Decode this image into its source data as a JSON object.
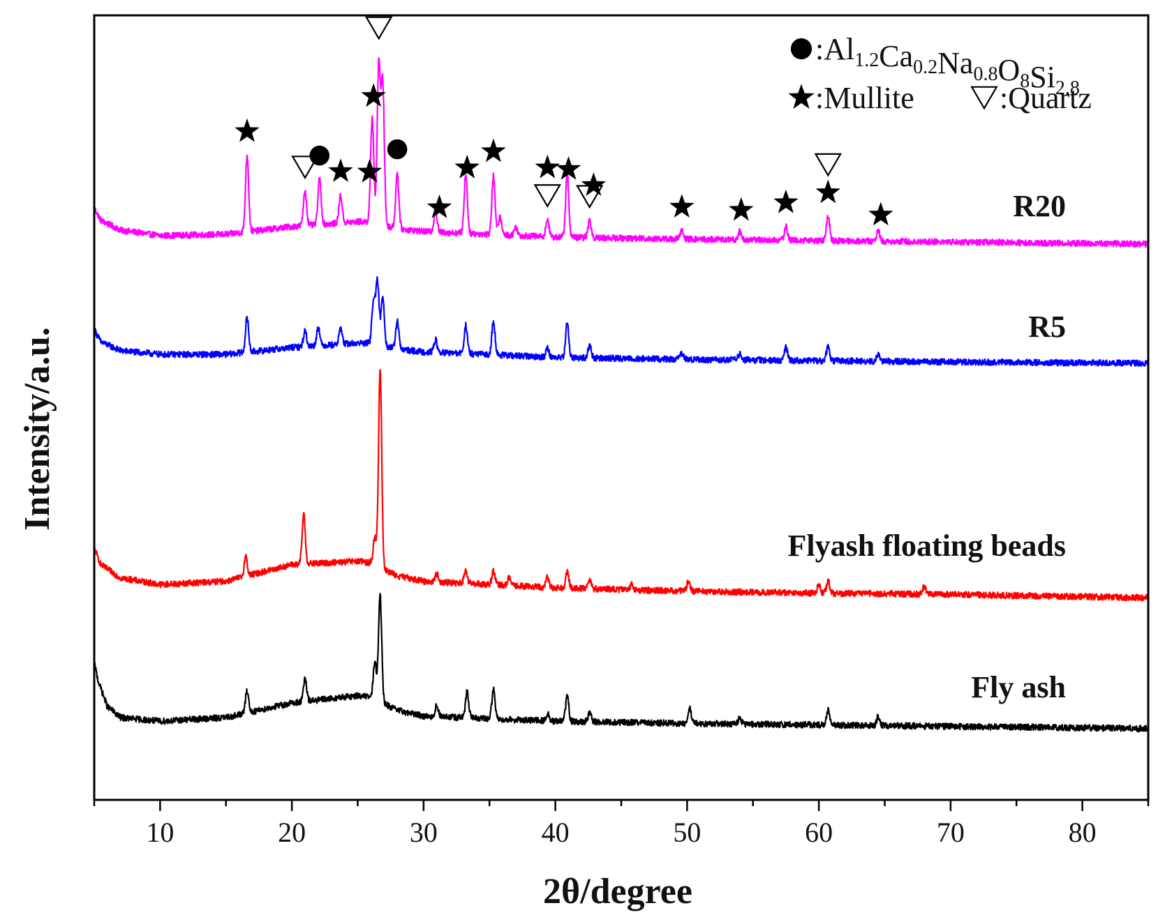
{
  "chart_data": {
    "type": "line",
    "xlabel": "2θ/degree",
    "ylabel": "Intensity/a.u.",
    "xlim": [
      5,
      85
    ],
    "xticks": [
      10,
      20,
      30,
      40,
      50,
      60,
      70,
      80
    ],
    "xtick_labels": [
      "10",
      "20",
      "30",
      "40",
      "50",
      "60",
      "70",
      "80"
    ],
    "grid": false,
    "y_axis_ticks": false,
    "legend": {
      "placement": "top-right",
      "formula_items": [
        {
          "t": "Al",
          "s": "1.2"
        },
        {
          "t": "Ca",
          "s": "0.2"
        },
        {
          "t": "Na",
          "s": "0.8"
        },
        {
          "t": "O",
          "s": "8"
        },
        {
          "t": "Si",
          "s": "2.8"
        }
      ],
      "entries": [
        {
          "symbol": "circle",
          "label": "Al1.2Ca0.2Na0.8O8Si2.8"
        },
        {
          "symbol": "star",
          "label": "Mullite"
        },
        {
          "symbol": "triangle",
          "label": "Quartz"
        }
      ]
    },
    "series": [
      {
        "name": "R20",
        "color": "#ff00ff",
        "offset": 210,
        "baseline": {
          "x": [
            5,
            5.5,
            7,
            10,
            15,
            20,
            25,
            26,
            28,
            30,
            40,
            50,
            60,
            70,
            85
          ],
          "y": [
            60,
            42,
            28,
            20,
            22,
            33,
            40,
            40,
            30,
            26,
            18,
            15,
            13,
            11,
            8
          ]
        },
        "peaks": [
          {
            "x": 16.6,
            "h": 110
          },
          {
            "x": 21.0,
            "h": 50
          },
          {
            "x": 22.1,
            "h": 65
          },
          {
            "x": 23.7,
            "h": 40
          },
          {
            "x": 26.1,
            "h": 150
          },
          {
            "x": 26.6,
            "h": 230
          },
          {
            "x": 26.9,
            "h": 200
          },
          {
            "x": 28.0,
            "h": 80
          },
          {
            "x": 30.9,
            "h": 30
          },
          {
            "x": 33.2,
            "h": 85
          },
          {
            "x": 35.3,
            "h": 85
          },
          {
            "x": 35.8,
            "h": 25
          },
          {
            "x": 37.0,
            "h": 12
          },
          {
            "x": 39.4,
            "h": 25
          },
          {
            "x": 40.9,
            "h": 90
          },
          {
            "x": 42.6,
            "h": 25
          },
          {
            "x": 49.6,
            "h": 12
          },
          {
            "x": 54.0,
            "h": 12
          },
          {
            "x": 57.5,
            "h": 20
          },
          {
            "x": 60.7,
            "h": 35
          },
          {
            "x": 64.5,
            "h": 15
          }
        ]
      },
      {
        "name": "R5",
        "color": "#0000ff",
        "offset": 110,
        "baseline": {
          "x": [
            5,
            5.5,
            7,
            10,
            15,
            20,
            25,
            26,
            28,
            30,
            40,
            50,
            60,
            70,
            85
          ],
          "y": [
            62,
            42,
            28,
            22,
            22,
            33,
            40,
            40,
            30,
            26,
            17,
            14,
            12,
            10,
            8
          ]
        },
        "peaks": [
          {
            "x": 16.6,
            "h": 55
          },
          {
            "x": 21.0,
            "h": 25
          },
          {
            "x": 22.0,
            "h": 30
          },
          {
            "x": 23.7,
            "h": 25
          },
          {
            "x": 26.2,
            "h": 70
          },
          {
            "x": 26.5,
            "h": 100
          },
          {
            "x": 26.9,
            "h": 80
          },
          {
            "x": 28.0,
            "h": 45
          },
          {
            "x": 30.9,
            "h": 20
          },
          {
            "x": 33.2,
            "h": 45
          },
          {
            "x": 35.3,
            "h": 55
          },
          {
            "x": 39.4,
            "h": 15
          },
          {
            "x": 40.9,
            "h": 55
          },
          {
            "x": 42.6,
            "h": 20
          },
          {
            "x": 49.6,
            "h": 10
          },
          {
            "x": 54.0,
            "h": 10
          },
          {
            "x": 57.5,
            "h": 20
          },
          {
            "x": 60.7,
            "h": 25
          },
          {
            "x": 64.5,
            "h": 10
          }
        ]
      },
      {
        "name": "Flyash floating beads",
        "color": "#ff0000",
        "offset": -40,
        "baseline": {
          "x": [
            5,
            5.5,
            7,
            10,
            15,
            20,
            25,
            26,
            28,
            30,
            40,
            50,
            60,
            70,
            85
          ],
          "y": [
            80,
            55,
            35,
            25,
            30,
            55,
            60,
            58,
            38,
            30,
            20,
            15,
            12,
            10,
            5
          ]
        },
        "peaks": [
          {
            "x": 16.5,
            "h": 30
          },
          {
            "x": 20.9,
            "h": 75
          },
          {
            "x": 26.3,
            "h": 40
          },
          {
            "x": 26.7,
            "h": 300
          },
          {
            "x": 31.0,
            "h": 12
          },
          {
            "x": 33.2,
            "h": 18
          },
          {
            "x": 35.3,
            "h": 20
          },
          {
            "x": 36.5,
            "h": 12
          },
          {
            "x": 39.4,
            "h": 15
          },
          {
            "x": 40.9,
            "h": 25
          },
          {
            "x": 42.6,
            "h": 15
          },
          {
            "x": 45.8,
            "h": 8
          },
          {
            "x": 50.1,
            "h": 15
          },
          {
            "x": 60.0,
            "h": 12
          },
          {
            "x": 60.7,
            "h": 18
          },
          {
            "x": 68.0,
            "h": 12
          }
        ]
      },
      {
        "name": "Fly ash",
        "color": "#000000",
        "offset": -230,
        "baseline": {
          "x": [
            5,
            5.3,
            6,
            7,
            10,
            15,
            20,
            25,
            26,
            28,
            30,
            40,
            50,
            60,
            70,
            85
          ],
          "y": [
            95,
            70,
            35,
            20,
            15,
            20,
            40,
            50,
            48,
            30,
            22,
            15,
            12,
            10,
            8,
            5
          ]
        },
        "peaks": [
          {
            "x": 16.6,
            "h": 30
          },
          {
            "x": 21.0,
            "h": 30
          },
          {
            "x": 26.3,
            "h": 50
          },
          {
            "x": 26.7,
            "h": 145
          },
          {
            "x": 31.0,
            "h": 15
          },
          {
            "x": 33.3,
            "h": 35
          },
          {
            "x": 35.3,
            "h": 40
          },
          {
            "x": 39.4,
            "h": 10
          },
          {
            "x": 40.9,
            "h": 35
          },
          {
            "x": 42.6,
            "h": 12
          },
          {
            "x": 50.2,
            "h": 20
          },
          {
            "x": 54.0,
            "h": 8
          },
          {
            "x": 60.7,
            "h": 20
          },
          {
            "x": 64.5,
            "h": 12
          }
        ]
      }
    ],
    "annotations": {
      "series": "R20",
      "markers": [
        {
          "symbol": "star",
          "x": 16.6,
          "y_above": 1
        },
        {
          "symbol": "triangle",
          "x": 21.0,
          "y_above": 1
        },
        {
          "symbol": "circle",
          "x": 22.1,
          "y_above": 1
        },
        {
          "symbol": "star",
          "x": 23.7,
          "y_above": 1
        },
        {
          "symbol": "star",
          "x": 25.9,
          "y_above": 1
        },
        {
          "symbol": "star",
          "x": 26.2,
          "y_above": 2
        },
        {
          "symbol": "triangle",
          "x": 26.6,
          "y_above": 3
        },
        {
          "symbol": "circle",
          "x": 28.0,
          "y_above": 1
        },
        {
          "symbol": "star",
          "x": 31.2,
          "y_above": 1
        },
        {
          "symbol": "star",
          "x": 33.3,
          "y_above": 1
        },
        {
          "symbol": "star",
          "x": 35.3,
          "y_above": 1
        },
        {
          "symbol": "triangle",
          "x": 39.4,
          "y_above": 1
        },
        {
          "symbol": "star",
          "x": 39.4,
          "y_above": 2
        },
        {
          "symbol": "star",
          "x": 41.0,
          "y_above": 1
        },
        {
          "symbol": "triangle",
          "x": 42.6,
          "y_above": 1
        },
        {
          "symbol": "star",
          "x": 42.9,
          "y_above": 2
        },
        {
          "symbol": "star",
          "x": 49.6,
          "y_above": 1
        },
        {
          "symbol": "star",
          "x": 54.1,
          "y_above": 1
        },
        {
          "symbol": "star",
          "x": 57.5,
          "y_above": 1
        },
        {
          "symbol": "star",
          "x": 60.7,
          "y_above": 1
        },
        {
          "symbol": "triangle",
          "x": 60.7,
          "y_above": 2
        },
        {
          "symbol": "star",
          "x": 64.7,
          "y_above": 1
        }
      ]
    }
  }
}
